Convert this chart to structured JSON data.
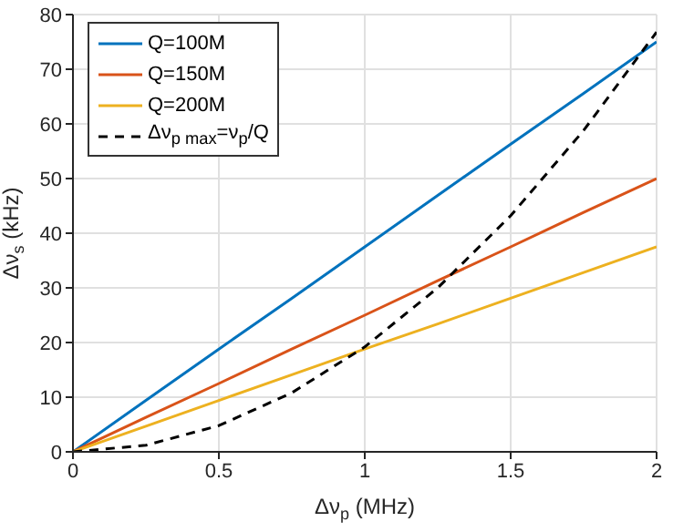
{
  "chart_data": {
    "type": "line",
    "xlabel": "Δν$_{p}$ (MHz)",
    "ylabel": "Δν$_{s}$ (kHz)",
    "x": [
      0,
      0.25,
      0.5,
      0.75,
      1,
      1.25,
      1.5,
      1.75,
      2
    ],
    "series": [
      {
        "name": "Q=100M",
        "color": "#0072bd",
        "values": [
          0,
          9.4,
          18.8,
          28.1,
          37.5,
          46.9,
          56.3,
          65.6,
          75
        ]
      },
      {
        "name": "Q=150M",
        "color": "#d95319",
        "values": [
          0,
          6.3,
          12.5,
          18.8,
          25,
          31.3,
          37.5,
          43.8,
          50
        ]
      },
      {
        "name": "Q=200M",
        "color": "#edb120",
        "values": [
          0,
          4.7,
          9.4,
          14.1,
          18.8,
          23.4,
          28.1,
          32.8,
          37.5
        ]
      },
      {
        "name": "Δν$_{p max}$=ν$_{p}$/Q",
        "color": "#000000",
        "line_style": "dashed",
        "values": [
          0,
          1.2,
          4.8,
          10.8,
          19.2,
          30,
          43.2,
          58.8,
          76.8
        ]
      }
    ],
    "xlim": [
      0,
      2
    ],
    "xticks": [
      0,
      0.5,
      1,
      1.5,
      2
    ],
    "ylim": [
      0,
      80
    ],
    "yticks": [
      0,
      10,
      20,
      30,
      40,
      50,
      60,
      70,
      80
    ],
    "grid": true,
    "legend": "top left",
    "marker": "none",
    "line_style": "solid"
  }
}
